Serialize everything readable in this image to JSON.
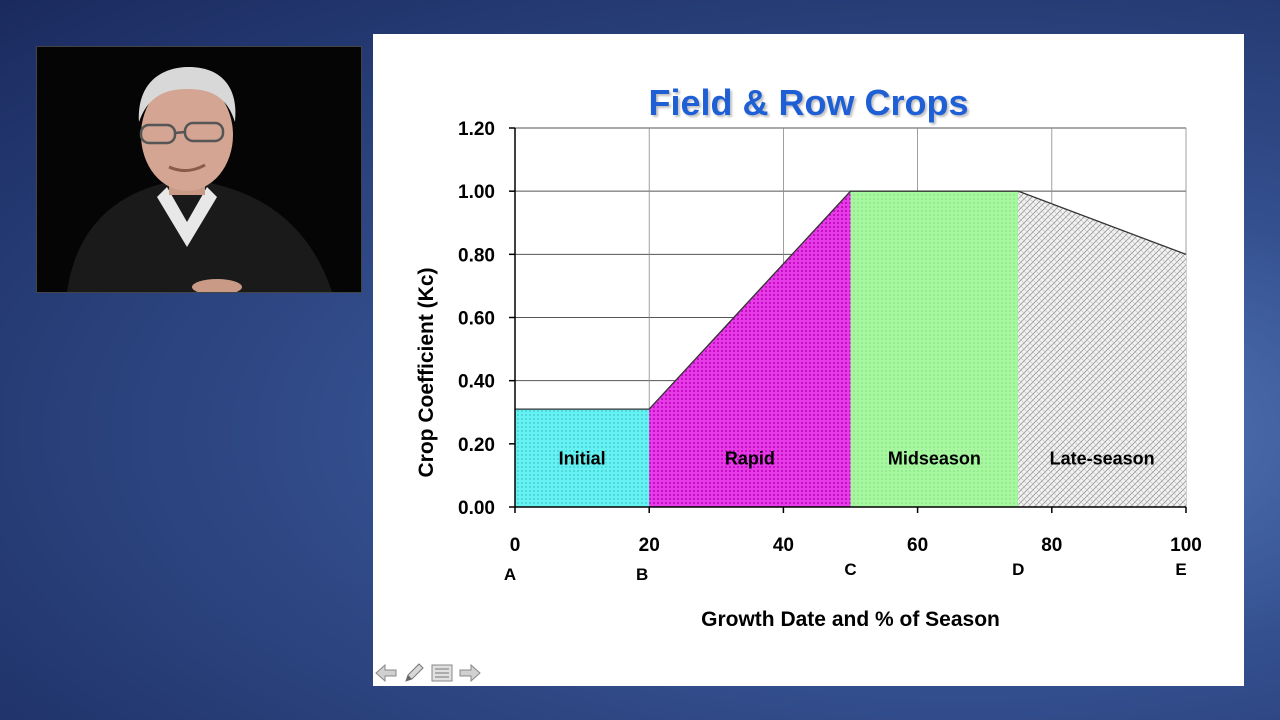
{
  "slide": {
    "title": "Field & Row Crops"
  },
  "nav": {
    "icons": [
      "arrow-left-icon",
      "pen-icon",
      "menu-icon",
      "arrow-right-icon"
    ]
  },
  "chart_data": {
    "type": "area",
    "title": "Field & Row Crops",
    "xlabel": "Growth Date and % of Season",
    "ylabel": "Crop Coefficient (Kc)",
    "xlim": [
      0,
      100
    ],
    "ylim": [
      0,
      1.2
    ],
    "x_ticks": [
      "0",
      "20",
      "40",
      "60",
      "80",
      "100"
    ],
    "x_tick_values": [
      0,
      20,
      40,
      60,
      80,
      100
    ],
    "y_ticks": [
      "0.00",
      "0.20",
      "0.40",
      "0.60",
      "0.80",
      "1.00",
      "1.20"
    ],
    "y_tick_values": [
      0,
      0.2,
      0.4,
      0.6,
      0.8,
      1.0,
      1.2
    ],
    "grid": true,
    "stage_points": [
      {
        "label": "A",
        "x": 0
      },
      {
        "label": "B",
        "x": 20
      },
      {
        "label": "C",
        "x": 50
      },
      {
        "label": "D",
        "x": 75
      },
      {
        "label": "E",
        "x": 100
      }
    ],
    "curve": {
      "x": [
        0,
        20,
        50,
        75,
        100
      ],
      "y": [
        0.31,
        0.31,
        1.0,
        1.0,
        0.8
      ]
    },
    "phases": [
      {
        "name": "Initial",
        "x_start": 0,
        "x_end": 20,
        "color": "#66f2f2",
        "pattern": "dots"
      },
      {
        "name": "Rapid",
        "x_start": 20,
        "x_end": 50,
        "color": "#e21fe2",
        "pattern": "dots"
      },
      {
        "name": "Midseason",
        "x_start": 50,
        "x_end": 75,
        "color": "#a6f7a0",
        "pattern": "dots"
      },
      {
        "name": "Late-season",
        "x_start": 75,
        "x_end": 100,
        "color": "#e4e4e4",
        "pattern": "hatch"
      }
    ]
  }
}
